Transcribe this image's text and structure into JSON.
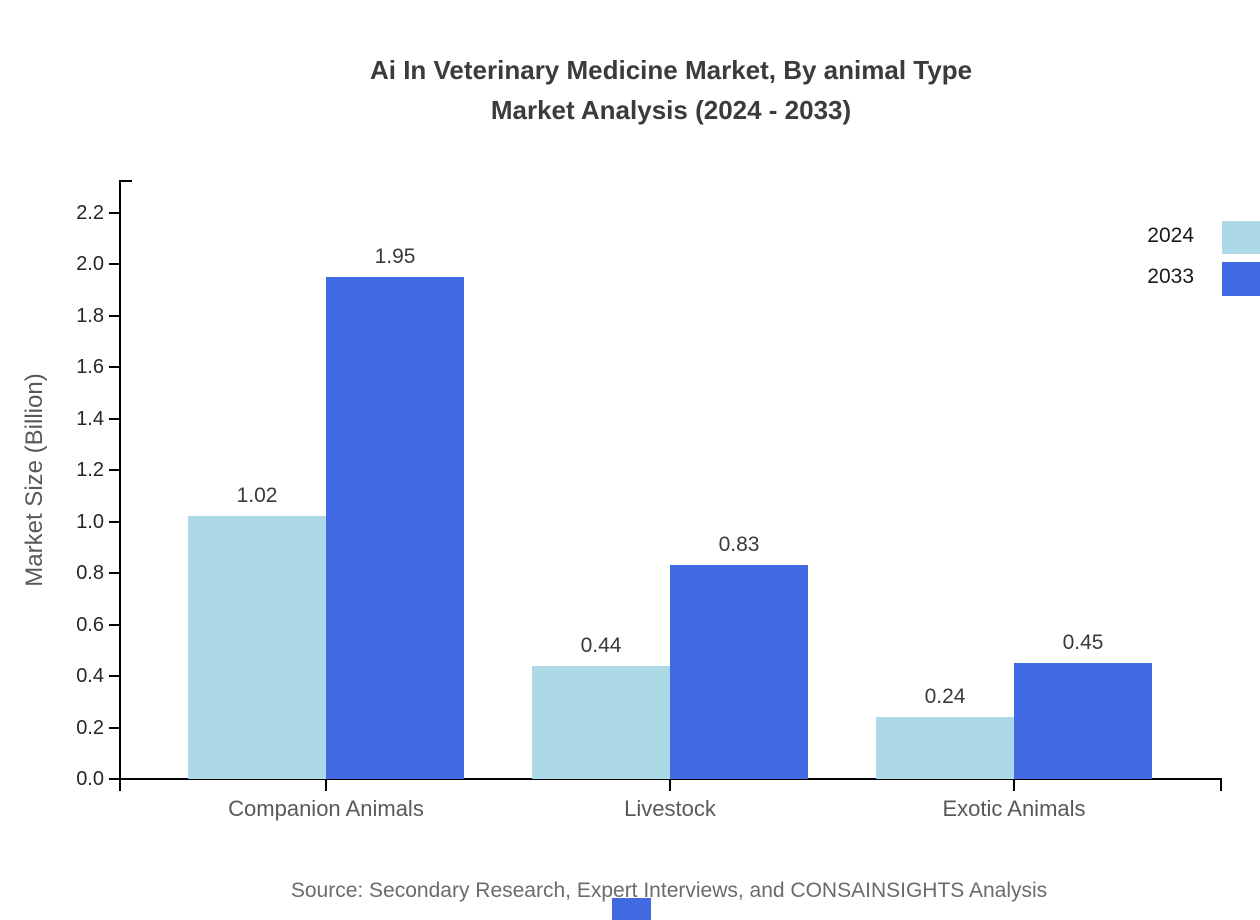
{
  "title": {
    "line1": "Ai In Veterinary Medicine Market, By animal Type",
    "line2": "Market Analysis (2024 - 2033)"
  },
  "chart_data": {
    "type": "bar",
    "categories": [
      "Companion Animals",
      "Livestock",
      "Exotic Animals"
    ],
    "series": [
      {
        "name": "2024",
        "color": "#ADD8E6",
        "values": [
          1.02,
          0.44,
          0.24
        ]
      },
      {
        "name": "2033",
        "color": "#4169E1",
        "values": [
          1.95,
          0.83,
          0.45
        ]
      }
    ],
    "ylabel": "Market Size (Billion)",
    "xlabel": "",
    "ylim": [
      0,
      2.3
    ],
    "yticks": [
      0.0,
      0.2,
      0.4,
      0.6,
      0.8,
      1.0,
      1.2,
      1.4,
      1.6,
      1.8,
      2.0,
      2.2
    ],
    "grid": false,
    "legend_position": "upper-right-outside",
    "value_labels": [
      "1.02",
      "1.95",
      "0.44",
      "0.83",
      "0.24",
      "0.45"
    ]
  },
  "legend": {
    "items": [
      {
        "label": "2024",
        "color": "#ADD8E6"
      },
      {
        "label": "2033",
        "color": "#4169E1"
      }
    ]
  },
  "source": {
    "text": "Source: Secondary Research, Expert Interviews, and CONSAINSIGHTS Analysis"
  },
  "colors": {
    "axis": "#000000",
    "title_text": "#3b3b3b",
    "tick_text": "#262626",
    "category_text": "#595959",
    "value_text": "#3a3a3a",
    "source_text": "#6b6b6b",
    "logo": "#4169E1"
  }
}
